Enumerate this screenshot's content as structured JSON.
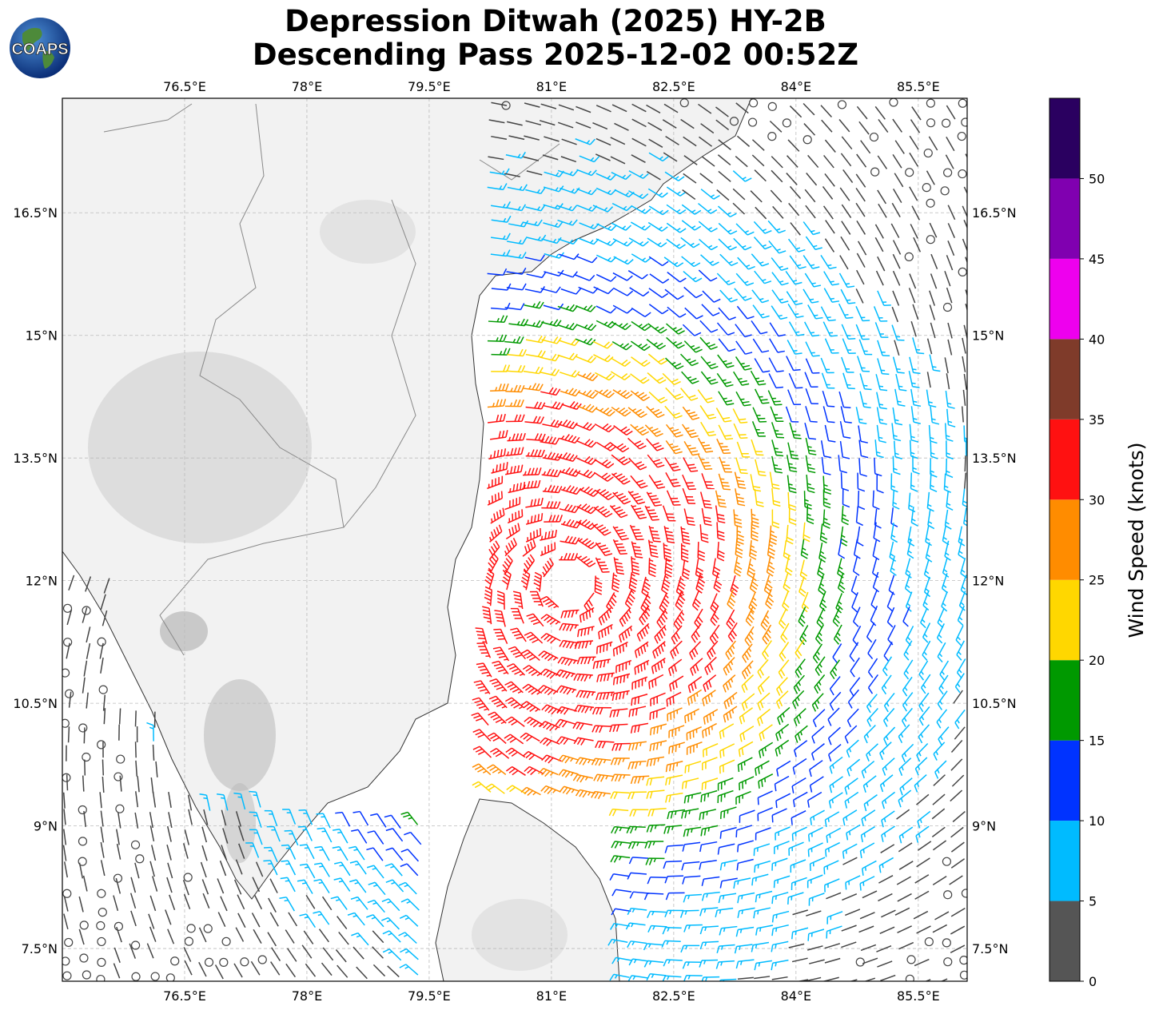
{
  "header": {
    "title_line1": "Depression Ditwah (2025) HY-2B",
    "title_line2": "Descending Pass 2025-12-02 00:52Z",
    "logo_text": "COAPS"
  },
  "axes": {
    "lon_ticks": [
      "76.5°E",
      "78°E",
      "79.5°E",
      "81°E",
      "82.5°E",
      "84°E",
      "85.5°E"
    ],
    "lat_ticks": [
      "16.5°N",
      "15°N",
      "13.5°N",
      "12°N",
      "10.5°N",
      "9°N",
      "7.5°N"
    ],
    "lon_range": [
      75.0,
      86.1
    ],
    "lat_range": [
      7.1,
      17.9
    ]
  },
  "colorbar": {
    "title": "Wind Speed (knots)",
    "tick_labels": [
      "0",
      "5",
      "10",
      "15",
      "20",
      "25",
      "30",
      "35",
      "40",
      "45",
      "50"
    ],
    "bands": [
      {
        "min": 0,
        "max": 5,
        "color": "#555555"
      },
      {
        "min": 5,
        "max": 10,
        "color": "#00bbff"
      },
      {
        "min": 10,
        "max": 15,
        "color": "#0033ff"
      },
      {
        "min": 15,
        "max": 20,
        "color": "#009900"
      },
      {
        "min": 20,
        "max": 25,
        "color": "#ffd700"
      },
      {
        "min": 25,
        "max": 30,
        "color": "#ff8c00"
      },
      {
        "min": 30,
        "max": 35,
        "color": "#ff1111"
      },
      {
        "min": 35,
        "max": 40,
        "color": "#7f3b2a"
      },
      {
        "min": 40,
        "max": 45,
        "color": "#ee00ee"
      },
      {
        "min": 45,
        "max": 50,
        "color": "#8000b0"
      },
      {
        "min": 50,
        "max": 55,
        "color": "#2a0060"
      }
    ]
  },
  "wind_field": {
    "type": "cyclonic",
    "center_lat": 11.95,
    "center_lon": 81.2,
    "peak_speed_kt": 32,
    "swath_west_edge_lon": 80.2,
    "colors": {
      "calm": "#444444",
      "light": "#00bbff",
      "moderate": "#0033ff",
      "fresh": "#009900",
      "strong": "#ffd700",
      "gale": "#ff8c00",
      "storm": "#ff1111"
    }
  },
  "map_colors": {
    "land": "#f2f2f2",
    "highland": "#b8b8b8",
    "ocean": "#ffffff",
    "coastline": "#333333",
    "borders": "#888888",
    "grid": "#bbbbbb"
  }
}
